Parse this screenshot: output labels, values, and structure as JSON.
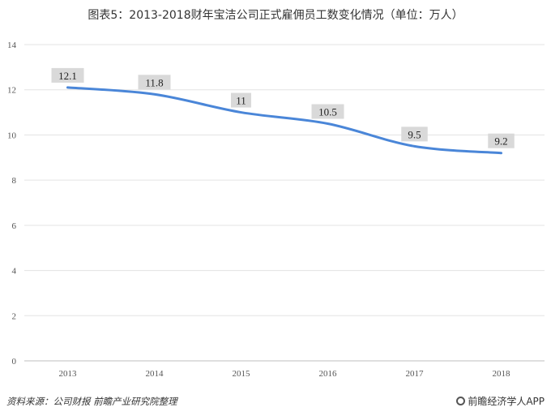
{
  "chart_data": {
    "type": "line",
    "title": "图表5：2013-2018财年宝洁公司正式雇佣员工数变化情况（单位：万人）",
    "xlabel": "",
    "ylabel": "",
    "x": [
      "2013",
      "2014",
      "2015",
      "2016",
      "2017",
      "2018"
    ],
    "series": [
      {
        "values": [
          12.1,
          11.8,
          11,
          10.5,
          9.5,
          9.2
        ]
      }
    ],
    "data_labels": [
      "12.1",
      "11.8",
      "11",
      "10.5",
      "9.5",
      "9.2"
    ],
    "ylim": [
      0,
      14
    ],
    "yticks": [
      0,
      2,
      4,
      6,
      8,
      10,
      12,
      14
    ],
    "grid": true,
    "legend": "none",
    "line_color": "#4a86d8",
    "label_bg": "#d9d9d9"
  },
  "footer": {
    "source": "资料来源：公司财报  前瞻产业研究院整理",
    "brand": "前瞻经济学人APP"
  }
}
